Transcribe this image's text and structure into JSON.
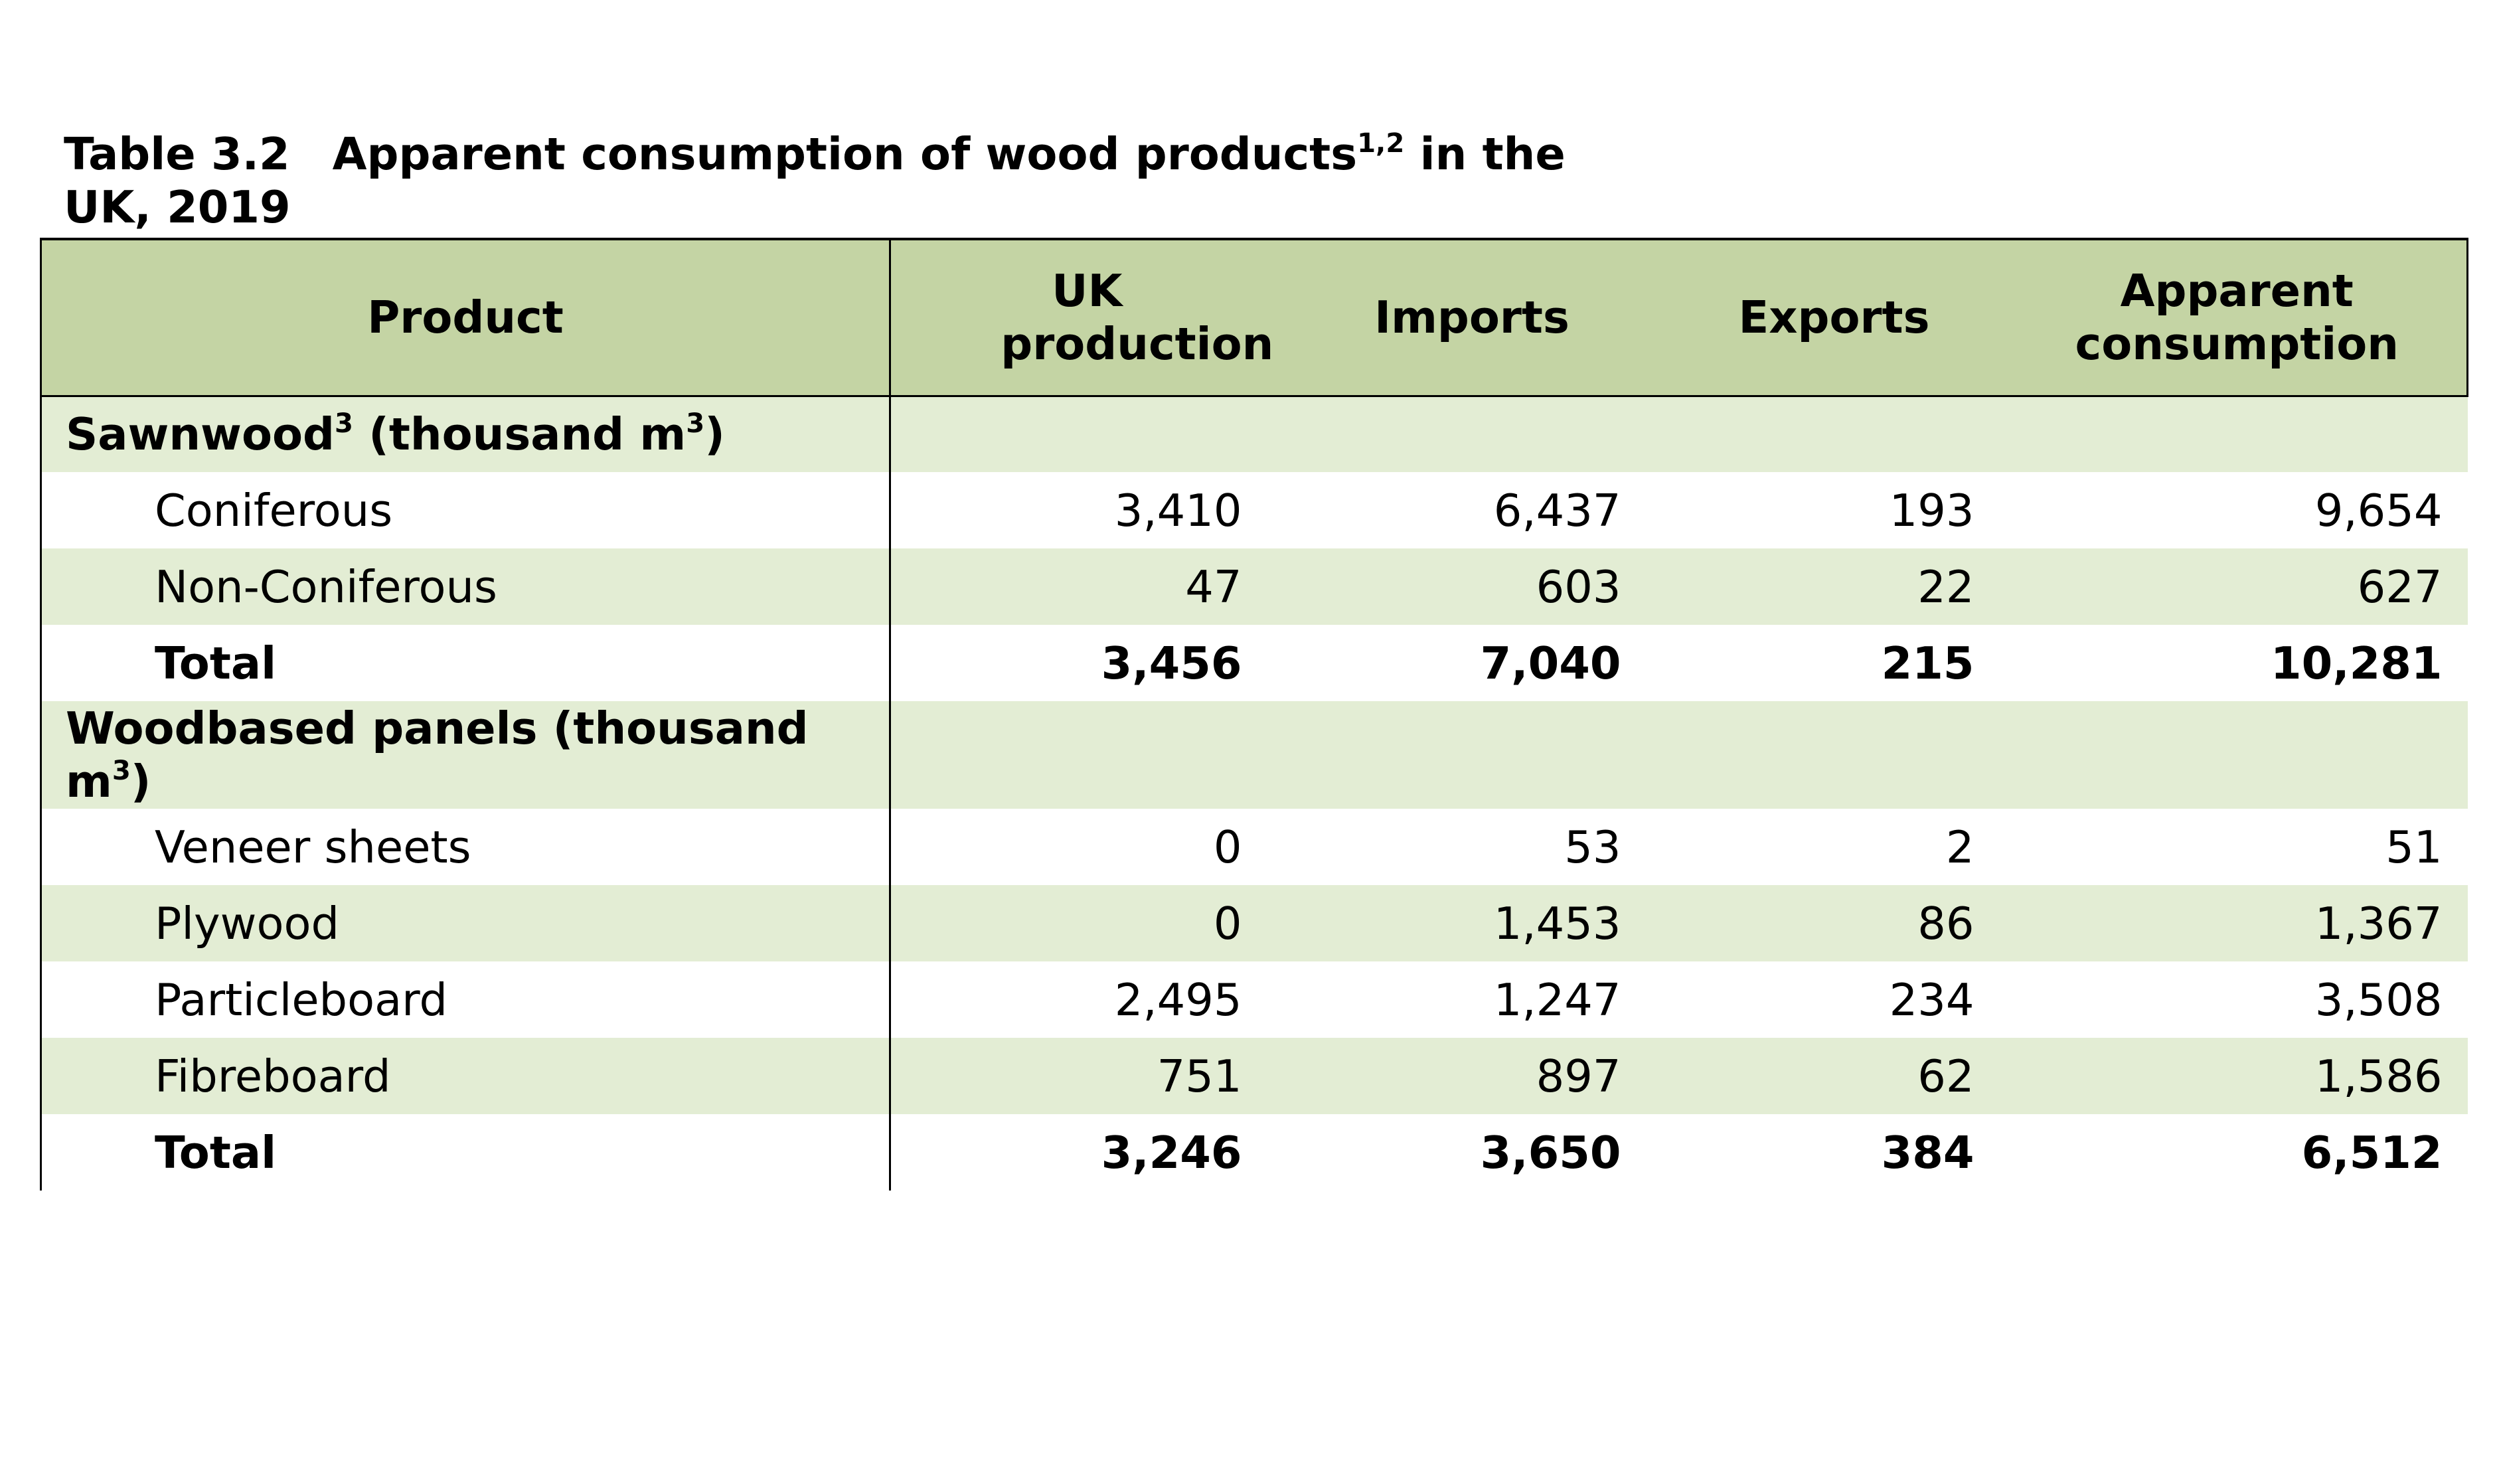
{
  "title": {
    "number": "Table 3.2",
    "text": "Apparent consumption of wood products",
    "superscript": "1,2",
    "suffix": " in the UK, 2019"
  },
  "columns": {
    "product": "Product",
    "uk_production": "UK production",
    "imports": "Imports",
    "exports": "Exports",
    "apparent_consumption": "Apparent consumption"
  },
  "sections": {
    "sawnwood": {
      "label": "Sawnwood",
      "label_sup": "3",
      "unit_prefix": " (thousand m",
      "unit_sup": "3",
      "unit_suffix": ")",
      "rows": [
        {
          "product": "Coniferous",
          "uk_production": "3,410",
          "imports": "6,437",
          "exports": "193",
          "apparent_consumption": "9,654"
        },
        {
          "product": "Non-Coniferous",
          "uk_production": "47",
          "imports": "603",
          "exports": "22",
          "apparent_consumption": "627"
        },
        {
          "product": "Total",
          "uk_production": "3,456",
          "imports": "7,040",
          "exports": "215",
          "apparent_consumption": "10,281"
        }
      ]
    },
    "panels": {
      "label": "Woodbased panels (thousand m",
      "unit_sup": "3",
      "unit_suffix": ")",
      "rows": [
        {
          "product": "Veneer sheets",
          "uk_production": "0",
          "imports": "53",
          "exports": "2",
          "apparent_consumption": "51"
        },
        {
          "product": "Plywood",
          "uk_production": "0",
          "imports": "1,453",
          "exports": "86",
          "apparent_consumption": "1,367"
        },
        {
          "product": "Particleboard",
          "uk_production": "2,495",
          "imports": "1,247",
          "exports": "234",
          "apparent_consumption": "3,508"
        },
        {
          "product": "Fibreboard",
          "uk_production": "751",
          "imports": "897",
          "exports": "62",
          "apparent_consumption": "1,586"
        },
        {
          "product": "Total",
          "uk_production": "3,246",
          "imports": "3,650",
          "exports": "384",
          "apparent_consumption": "6,512"
        }
      ]
    }
  },
  "colors": {
    "header_bg": "#c4d4a4",
    "band_bg": "#e3edd4",
    "border": "#000000"
  }
}
